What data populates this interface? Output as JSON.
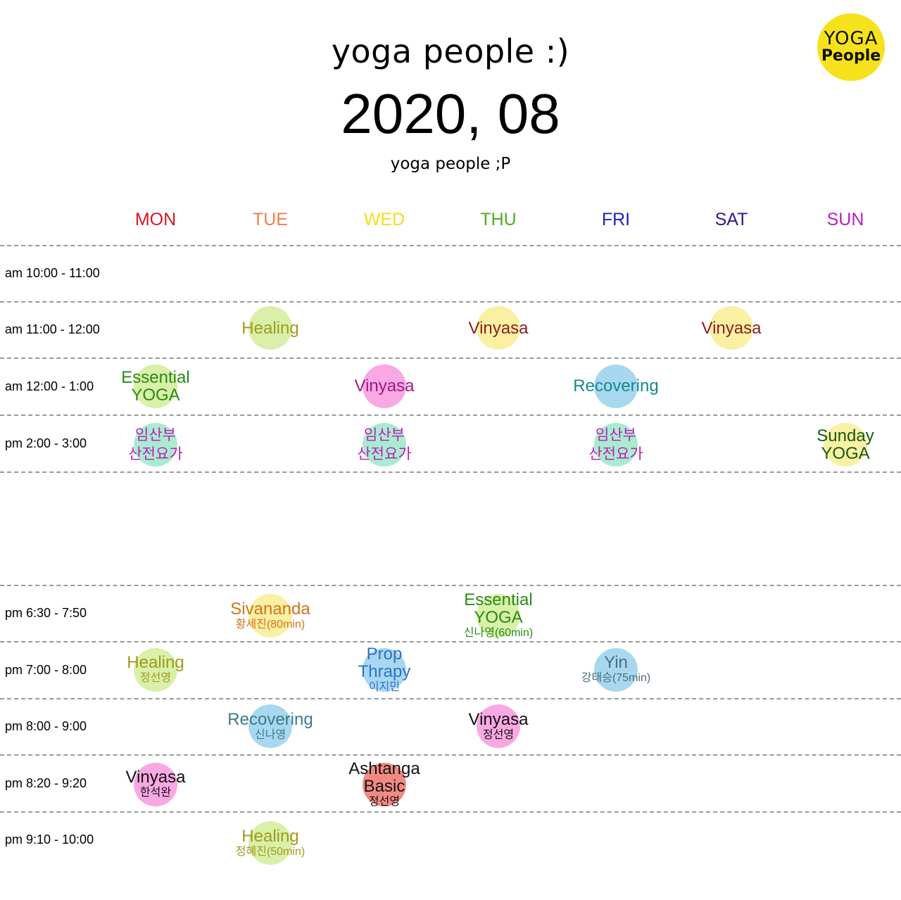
{
  "header": {
    "title": "yoga people :)",
    "date": "2020, 08",
    "subtitle": "yoga people ;P"
  },
  "logo": {
    "line1": "YOGA",
    "line2": "People",
    "color": "#f6e21c"
  },
  "days": [
    {
      "label": "MON",
      "color": "#d7171f"
    },
    {
      "label": "TUE",
      "color": "#f07f4a"
    },
    {
      "label": "WED",
      "color": "#f7dc1a"
    },
    {
      "label": "THU",
      "color": "#4fad1f"
    },
    {
      "label": "FRI",
      "color": "#1a22c9"
    },
    {
      "label": "SAT",
      "color": "#2a1d8a"
    },
    {
      "label": "SUN",
      "color": "#b71ec4"
    }
  ],
  "time_slots": [
    {
      "label": "am 10:00 - 11:00"
    },
    {
      "label": "am 11:00 - 12:00"
    },
    {
      "label": "am 12:00 - 1:00"
    },
    {
      "label": "pm 2:00 - 3:00"
    },
    {
      "label": "pm 6:30 - 7:50"
    },
    {
      "label": "pm 7:00 - 8:00"
    },
    {
      "label": "pm 8:00 - 9:00"
    },
    {
      "label": "pm 8:20 - 9:20"
    },
    {
      "label": "pm 9:10 - 10:00"
    }
  ],
  "classes": [
    {
      "slot": "am 11:00 - 12:00",
      "day": "TUE",
      "name": "Healing",
      "teacher": "",
      "text_color": "#a19a1a",
      "bubble_color": "#d8f0a8"
    },
    {
      "slot": "am 11:00 - 12:00",
      "day": "THU",
      "name": "Vinyasa",
      "teacher": "",
      "text_color": "#8c1d1d",
      "bubble_color": "#faf0a4"
    },
    {
      "slot": "am 11:00 - 12:00",
      "day": "SAT",
      "name": "Vinyasa",
      "teacher": "",
      "text_color": "#8c1d1d",
      "bubble_color": "#faf0a4"
    },
    {
      "slot": "am 12:00 - 1:00",
      "day": "MON",
      "name": "Essential YOGA",
      "teacher": "",
      "text_color": "#2a8a16",
      "bubble_color": "#d8f0a8"
    },
    {
      "slot": "am 12:00 - 1:00",
      "day": "WED",
      "name": "Vinyasa",
      "teacher": "",
      "text_color": "#9b1a86",
      "bubble_color": "#f9a8e4"
    },
    {
      "slot": "am 12:00 - 1:00",
      "day": "FRI",
      "name": "Recovering",
      "teacher": "",
      "text_color": "#17888a",
      "bubble_color": "#a8d8f0"
    },
    {
      "slot": "pm 2:00 - 3:00",
      "day": "MON",
      "name": "임산부 산전요가",
      "teacher": "",
      "text_color": "#c219b8",
      "bubble_color": "#a8ecd0"
    },
    {
      "slot": "pm 2:00 - 3:00",
      "day": "WED",
      "name": "임산부 산전요가",
      "teacher": "",
      "text_color": "#c219b8",
      "bubble_color": "#a8ecd0"
    },
    {
      "slot": "pm 2:00 - 3:00",
      "day": "FRI",
      "name": "임산부 산전요가",
      "teacher": "",
      "text_color": "#c219b8",
      "bubble_color": "#a8ecd0"
    },
    {
      "slot": "pm 2:00 - 3:00",
      "day": "SUN",
      "name": "Sunday YOGA",
      "teacher": "",
      "text_color": "#165c10",
      "bubble_color": "#faf0a4"
    },
    {
      "slot": "pm 6:30 - 7:50",
      "day": "TUE",
      "name": "Sivananda",
      "teacher": "황세진(80min)",
      "text_color": "#d2741a",
      "bubble_color": "#faf0a4"
    },
    {
      "slot": "pm 6:30 - 7:50",
      "day": "THU",
      "name": "Essential YOGA",
      "teacher": "신나영(60min)",
      "text_color": "#2a8a16",
      "bubble_color": "#d8f0a8"
    },
    {
      "slot": "pm 7:00 - 8:00",
      "day": "MON",
      "name": "Healing",
      "teacher": "정선영",
      "text_color": "#a19a1a",
      "bubble_color": "#d8f0a8"
    },
    {
      "slot": "pm 7:00 - 8:00",
      "day": "WED",
      "name": "Prop Thrapy",
      "teacher": "이지민",
      "text_color": "#2d6fd0",
      "bubble_color": "#a8d8f0"
    },
    {
      "slot": "pm 7:00 - 8:00",
      "day": "FRI",
      "name": "Yin",
      "teacher": "강태승(75min)",
      "text_color": "#4f6b7a",
      "bubble_color": "#a8d8f0"
    },
    {
      "slot": "pm 8:00 - 9:00",
      "day": "TUE",
      "name": "Recovering",
      "teacher": "신나영",
      "text_color": "#3c7b8a",
      "bubble_color": "#a8d8f0"
    },
    {
      "slot": "pm 8:00 - 9:00",
      "day": "THU",
      "name": "Vinyasa",
      "teacher": "정선영",
      "text_color": "#111111",
      "bubble_color": "#f9a8e4"
    },
    {
      "slot": "pm 8:20 - 9:20",
      "day": "MON",
      "name": "Vinyasa",
      "teacher": "한석완",
      "text_color": "#111111",
      "bubble_color": "#f9a8e4"
    },
    {
      "slot": "pm 8:20 - 9:20",
      "day": "WED",
      "name": "Ashtanga Basic",
      "teacher": "정선영",
      "text_color": "#111111",
      "bubble_color": "#f28a84"
    },
    {
      "slot": "pm 9:10 - 10:00",
      "day": "TUE",
      "name": "Healing",
      "teacher": "정혜진(50min)",
      "text_color": "#a19a1a",
      "bubble_color": "#d8f0a8"
    }
  ]
}
